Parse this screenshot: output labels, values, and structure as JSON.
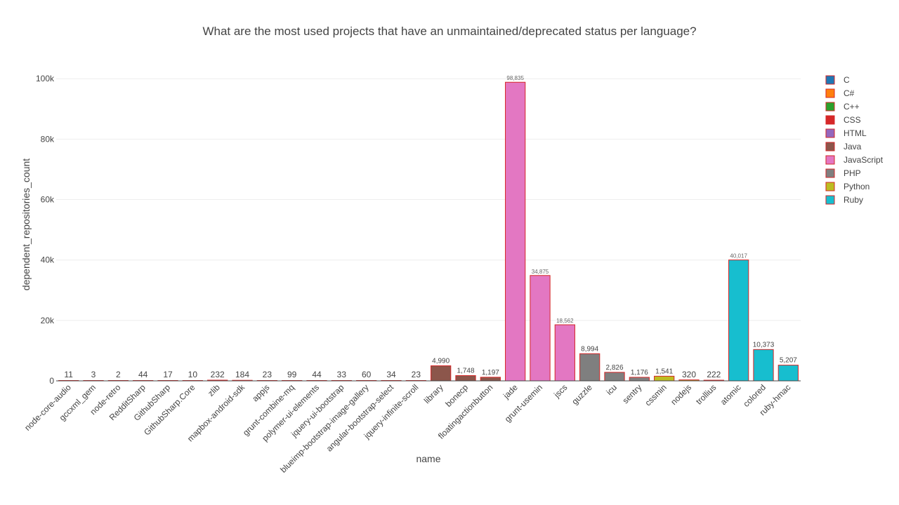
{
  "chart_data": {
    "type": "bar",
    "title": "What are the most used projects that have an unmaintained/deprecated status per language?",
    "xlabel": "name",
    "ylabel": "dependent_repositories_count",
    "ylim": [
      0,
      104000
    ],
    "y_ticks": [
      0,
      20000,
      40000,
      60000,
      80000,
      100000
    ],
    "y_tick_labels": [
      "0",
      "20k",
      "40k",
      "60k",
      "80k",
      "100k"
    ],
    "grid": true,
    "legend_position": "right",
    "legend": [
      {
        "name": "C",
        "color": "#1f77b4"
      },
      {
        "name": "C#",
        "color": "#ff7f0e"
      },
      {
        "name": "C++",
        "color": "#2ca02c"
      },
      {
        "name": "CSS",
        "color": "#d62728"
      },
      {
        "name": "HTML",
        "color": "#9467bd"
      },
      {
        "name": "Java",
        "color": "#8c564b"
      },
      {
        "name": "JavaScript",
        "color": "#e377c2"
      },
      {
        "name": "PHP",
        "color": "#7f7f7f"
      },
      {
        "name": "Python",
        "color": "#bcbd22"
      },
      {
        "name": "Ruby",
        "color": "#17becf"
      }
    ],
    "bars": [
      {
        "name": "node-core-audio",
        "value": 11,
        "label": "11",
        "language": "C"
      },
      {
        "name": "gccxml_gem",
        "value": 3,
        "label": "3",
        "language": "C"
      },
      {
        "name": "node-retro",
        "value": 2,
        "label": "2",
        "language": "C"
      },
      {
        "name": "RedditSharp",
        "value": 44,
        "label": "44",
        "language": "C#"
      },
      {
        "name": "GithubSharp",
        "value": 17,
        "label": "17",
        "language": "C#"
      },
      {
        "name": "GithubSharp.Core",
        "value": 10,
        "label": "10",
        "language": "C#"
      },
      {
        "name": "zlib",
        "value": 232,
        "label": "232",
        "language": "C++"
      },
      {
        "name": "mapbox-android-sdk",
        "value": 184,
        "label": "184",
        "language": "C++"
      },
      {
        "name": "appjs",
        "value": 23,
        "label": "23",
        "language": "C++"
      },
      {
        "name": "grunt-combine-mq",
        "value": 99,
        "label": "99",
        "language": "CSS"
      },
      {
        "name": "polymer-ui-elements",
        "value": 44,
        "label": "44",
        "language": "CSS"
      },
      {
        "name": "jquery-ui-bootstrap",
        "value": 33,
        "label": "33",
        "language": "CSS"
      },
      {
        "name": "blueimp-bootstrap-image-gallery",
        "value": 60,
        "label": "60",
        "language": "HTML"
      },
      {
        "name": "angular-bootstrap-select",
        "value": 34,
        "label": "34",
        "language": "HTML"
      },
      {
        "name": "jquery-infinite-scroll",
        "value": 23,
        "label": "23",
        "language": "HTML"
      },
      {
        "name": "library",
        "value": 4990,
        "label": "4,990",
        "language": "Java"
      },
      {
        "name": "bonecp",
        "value": 1748,
        "label": "1,748",
        "language": "Java"
      },
      {
        "name": "floatingactionbutton",
        "value": 1197,
        "label": "1,197",
        "language": "Java"
      },
      {
        "name": "jade",
        "value": 98835,
        "label": "98,835",
        "language": "JavaScript"
      },
      {
        "name": "grunt-usemin",
        "value": 34875,
        "label": "34,875",
        "language": "JavaScript"
      },
      {
        "name": "jscs",
        "value": 18562,
        "label": "18,562",
        "language": "JavaScript"
      },
      {
        "name": "guzzle",
        "value": 8994,
        "label": "8,994",
        "language": "PHP"
      },
      {
        "name": "icu",
        "value": 2826,
        "label": "2,826",
        "language": "PHP"
      },
      {
        "name": "sentry",
        "value": 1176,
        "label": "1,176",
        "language": "PHP"
      },
      {
        "name": "cssmin",
        "value": 1541,
        "label": "1,541",
        "language": "Python"
      },
      {
        "name": "nodejs",
        "value": 320,
        "label": "320",
        "language": "Python"
      },
      {
        "name": "trollius",
        "value": 222,
        "label": "222",
        "language": "Python"
      },
      {
        "name": "atomic",
        "value": 40017,
        "label": "40,017",
        "language": "Ruby"
      },
      {
        "name": "colored",
        "value": 10373,
        "label": "10,373",
        "language": "Ruby"
      },
      {
        "name": "ruby-hmac",
        "value": 5207,
        "label": "5,207",
        "language": "Ruby"
      }
    ]
  }
}
